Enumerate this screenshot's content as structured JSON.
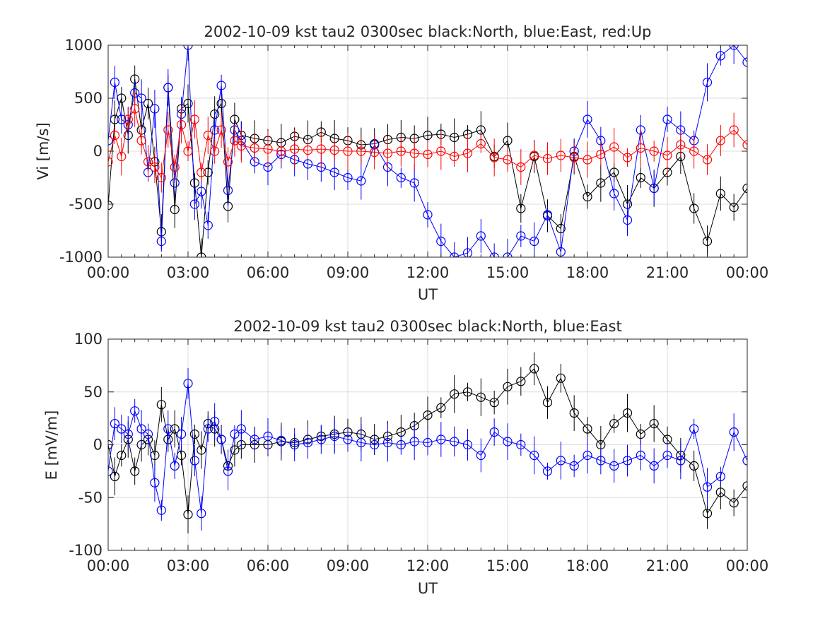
{
  "chart_data": [
    {
      "type": "line",
      "title": "2002-10-09 kst tau2 0300sec black:North, blue:East, red:Up",
      "xlabel": "UT",
      "ylabel": "Vi [m/s]",
      "ylim": [
        -1000,
        1000
      ],
      "xlim_hours": [
        0,
        24
      ],
      "grid": true,
      "xticks": [
        "00:00",
        "03:00",
        "06:00",
        "09:00",
        "12:00",
        "15:00",
        "18:00",
        "21:00",
        "00:00"
      ],
      "yticks": [
        "-1000",
        "-500",
        "0",
        "500",
        "1000"
      ],
      "series": [
        {
          "color": "#000000",
          "x_hours": [
            0.0,
            0.25,
            0.5,
            0.75,
            1.0,
            1.25,
            1.5,
            1.75,
            2.0,
            2.25,
            2.5,
            2.75,
            3.0,
            3.25,
            3.5,
            3.75,
            4.0,
            4.25,
            4.5,
            4.75,
            5.0,
            5.5,
            6.0,
            6.5,
            7.0,
            7.5,
            8.0,
            8.5,
            9.0,
            9.5,
            10.0,
            10.5,
            11.0,
            11.5,
            12.0,
            12.5,
            13.0,
            13.5,
            14.0,
            14.5,
            15.0,
            15.5,
            16.0,
            16.5,
            17.0,
            17.5,
            18.0,
            18.5,
            19.0,
            19.5,
            20.0,
            20.5,
            21.0,
            21.5,
            22.0,
            22.5,
            23.0,
            23.5,
            24.0
          ],
          "values": [
            -510,
            300,
            500,
            150,
            680,
            200,
            450,
            -100,
            -760,
            600,
            -550,
            400,
            450,
            -300,
            -1000,
            -200,
            350,
            450,
            -520,
            300,
            150,
            120,
            100,
            80,
            140,
            110,
            180,
            120,
            100,
            60,
            70,
            110,
            130,
            120,
            150,
            160,
            130,
            160,
            200,
            -50,
            100,
            -540,
            -50,
            -610,
            -730,
            -50,
            -430,
            -300,
            -200,
            -500,
            -250,
            -350,
            -200,
            -50,
            -540,
            -850,
            -400,
            -530,
            -350
          ],
          "error_bars": true
        },
        {
          "color": "#0000ff",
          "x_hours": [
            0.0,
            0.25,
            0.5,
            0.75,
            1.0,
            1.25,
            1.5,
            1.75,
            2.0,
            2.25,
            2.5,
            2.75,
            3.0,
            3.25,
            3.5,
            3.75,
            4.0,
            4.25,
            4.5,
            4.75,
            5.0,
            5.5,
            6.0,
            6.5,
            7.0,
            7.5,
            8.0,
            8.5,
            9.0,
            9.5,
            10.0,
            10.5,
            11.0,
            11.5,
            12.0,
            12.5,
            13.0,
            13.5,
            14.0,
            14.5,
            15.0,
            15.5,
            16.0,
            16.5,
            17.0,
            17.5,
            18.0,
            18.5,
            19.0,
            19.5,
            20.0,
            20.5,
            21.0,
            21.5,
            22.0,
            22.5,
            23.0,
            23.5,
            24.0
          ],
          "values": [
            100,
            650,
            300,
            250,
            550,
            500,
            -200,
            400,
            -850,
            600,
            -300,
            350,
            1000,
            -500,
            -380,
            -700,
            200,
            620,
            -370,
            200,
            100,
            -100,
            -150,
            -30,
            -80,
            -120,
            -150,
            -200,
            -250,
            -280,
            60,
            -150,
            -250,
            -300,
            -600,
            -850,
            -1000,
            -960,
            -800,
            -1000,
            -1000,
            -800,
            -850,
            -600,
            -950,
            0,
            300,
            100,
            -400,
            -650,
            200,
            -350,
            300,
            200,
            100,
            650,
            900,
            1000,
            840
          ],
          "error_bars": true
        },
        {
          "color": "#ff0000",
          "x_hours": [
            0.0,
            0.25,
            0.5,
            0.75,
            1.0,
            1.25,
            1.5,
            1.75,
            2.0,
            2.25,
            2.5,
            2.75,
            3.0,
            3.25,
            3.5,
            3.75,
            4.0,
            4.25,
            4.5,
            4.75,
            5.0,
            5.5,
            6.0,
            6.5,
            7.0,
            7.5,
            8.0,
            8.5,
            9.0,
            9.5,
            10.0,
            10.5,
            11.0,
            11.5,
            12.0,
            12.5,
            13.0,
            13.5,
            14.0,
            14.5,
            15.0,
            15.5,
            16.0,
            16.5,
            17.0,
            17.5,
            18.0,
            18.5,
            19.0,
            19.5,
            20.0,
            20.5,
            21.0,
            21.5,
            22.0,
            22.5,
            23.0,
            23.5,
            24.0
          ],
          "values": [
            -100,
            150,
            -50,
            300,
            400,
            100,
            -100,
            -150,
            -250,
            200,
            -150,
            250,
            0,
            300,
            -200,
            150,
            0,
            200,
            -100,
            100,
            50,
            30,
            20,
            0,
            20,
            10,
            20,
            10,
            0,
            0,
            -10,
            -20,
            0,
            -20,
            -30,
            0,
            -50,
            -20,
            70,
            -60,
            -80,
            -150,
            -40,
            -70,
            -40,
            -60,
            -80,
            -30,
            40,
            -60,
            30,
            0,
            -40,
            60,
            0,
            -80,
            100,
            200,
            60
          ],
          "error_bars": true
        }
      ]
    },
    {
      "type": "line",
      "title": "2002-10-09 kst tau2 0300sec black:North, blue:East",
      "xlabel": "UT",
      "ylabel": "E [mV/m]",
      "ylim": [
        -100,
        100
      ],
      "xlim_hours": [
        0,
        24
      ],
      "grid": true,
      "xticks": [
        "00:00",
        "03:00",
        "06:00",
        "09:00",
        "12:00",
        "15:00",
        "18:00",
        "21:00",
        "00:00"
      ],
      "yticks": [
        "-100",
        "-50",
        "0",
        "50",
        "100"
      ],
      "series": [
        {
          "color": "#000000",
          "x_hours": [
            0.0,
            0.25,
            0.5,
            0.75,
            1.0,
            1.25,
            1.5,
            1.75,
            2.0,
            2.25,
            2.5,
            2.75,
            3.0,
            3.25,
            3.5,
            3.75,
            4.0,
            4.25,
            4.5,
            4.75,
            5.0,
            5.5,
            6.0,
            6.5,
            7.0,
            7.5,
            8.0,
            8.5,
            9.0,
            9.5,
            10.0,
            10.5,
            11.0,
            11.5,
            12.0,
            12.5,
            13.0,
            13.5,
            14.0,
            14.5,
            15.0,
            15.5,
            16.0,
            16.5,
            17.0,
            17.5,
            18.0,
            18.5,
            19.0,
            19.5,
            20.0,
            20.5,
            21.0,
            21.5,
            22.0,
            22.5,
            23.0,
            23.5,
            24.0
          ],
          "values": [
            0,
            -30,
            -10,
            5,
            -25,
            0,
            5,
            -10,
            38,
            5,
            15,
            -10,
            -66,
            10,
            -5,
            20,
            15,
            5,
            -20,
            -5,
            0,
            0,
            0,
            3,
            2,
            5,
            8,
            10,
            12,
            10,
            5,
            8,
            12,
            18,
            28,
            35,
            48,
            50,
            45,
            40,
            55,
            60,
            72,
            40,
            63,
            30,
            15,
            0,
            20,
            30,
            10,
            20,
            5,
            -10,
            -20,
            -65,
            -45,
            -55,
            -39
          ],
          "error_bars": true
        },
        {
          "color": "#0000ff",
          "x_hours": [
            0.0,
            0.25,
            0.5,
            0.75,
            1.0,
            1.25,
            1.5,
            1.75,
            2.0,
            2.25,
            2.5,
            2.75,
            3.0,
            3.25,
            3.5,
            3.75,
            4.0,
            4.25,
            4.5,
            4.75,
            5.0,
            5.5,
            6.0,
            6.5,
            7.0,
            7.5,
            8.0,
            8.5,
            9.0,
            9.5,
            10.0,
            10.5,
            11.0,
            11.5,
            12.0,
            12.5,
            13.0,
            13.5,
            14.0,
            14.5,
            15.0,
            15.5,
            16.0,
            16.5,
            17.0,
            17.5,
            18.0,
            18.5,
            19.0,
            19.5,
            20.0,
            20.5,
            21.0,
            21.5,
            22.0,
            22.5,
            23.0,
            23.5,
            24.0
          ],
          "values": [
            -25,
            20,
            15,
            10,
            32,
            15,
            10,
            -36,
            -62,
            15,
            -20,
            10,
            58,
            -15,
            -65,
            15,
            22,
            5,
            -25,
            10,
            15,
            5,
            8,
            4,
            0,
            2,
            5,
            8,
            5,
            2,
            0,
            2,
            0,
            3,
            2,
            5,
            3,
            0,
            -10,
            12,
            3,
            0,
            -10,
            -25,
            -15,
            -20,
            -10,
            -15,
            -20,
            -15,
            -10,
            -20,
            -10,
            -15,
            15,
            -40,
            -30,
            12,
            -15
          ],
          "error_bars": true
        }
      ]
    }
  ]
}
